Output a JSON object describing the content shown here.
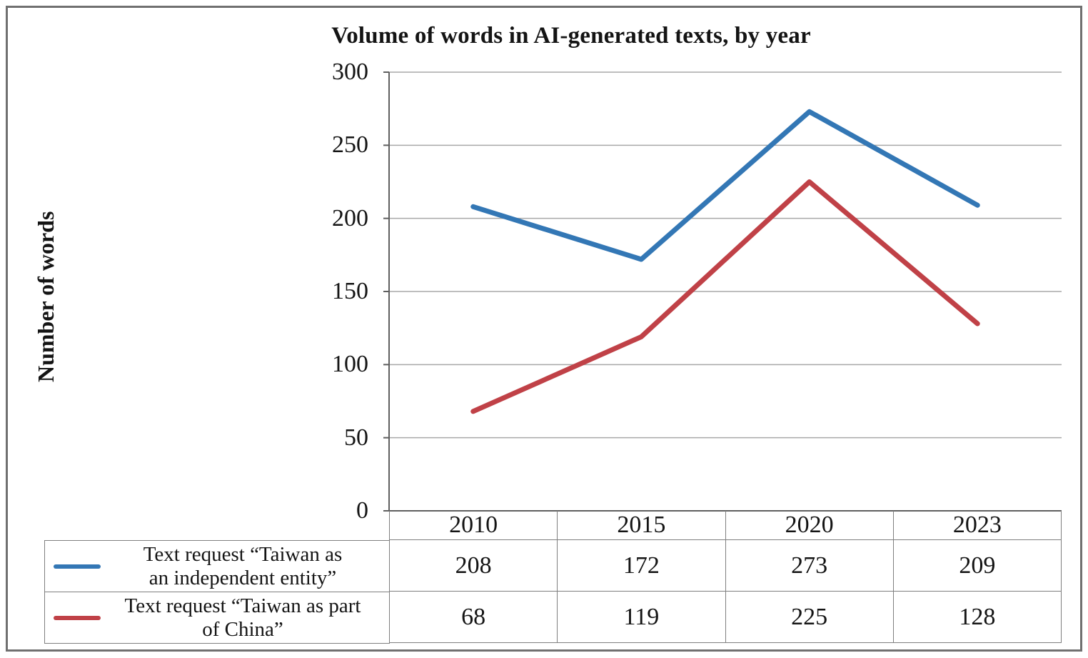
{
  "chart_data": {
    "type": "line",
    "title": "Volume of words in AI-generated texts, by year",
    "xlabel": "",
    "ylabel": "Number of words",
    "categories": [
      "2010",
      "2015",
      "2020",
      "2023"
    ],
    "series": [
      {
        "name": "Text request “Taiwan as an independent entity”",
        "color": "#3377B5",
        "values": [
          208,
          172,
          273,
          209
        ]
      },
      {
        "name": "Text request “Taiwan as part of China”",
        "color": "#C04147",
        "values": [
          68,
          119,
          225,
          128
        ]
      }
    ],
    "ylim": [
      0,
      300
    ],
    "yticks": [
      0,
      50,
      100,
      150,
      200,
      250,
      300
    ],
    "grid": "horizontal-major",
    "legend_position": "bottom-left"
  },
  "legend": {
    "items": [
      {
        "line1": "Text request “Taiwan as",
        "line2": "an independent entity”",
        "color": "#3377B5"
      },
      {
        "line1": "Text request “Taiwan as part",
        "line2": "of China”",
        "color": "#C04147"
      }
    ]
  }
}
